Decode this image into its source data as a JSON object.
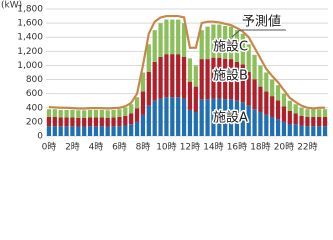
{
  "chart_data": {
    "type": "bar",
    "stacked": true,
    "unit": "(kW)",
    "categories": [
      "0時",
      null,
      null,
      null,
      "2時",
      null,
      null,
      null,
      "4時",
      null,
      null,
      null,
      "6時",
      null,
      null,
      null,
      "8時",
      null,
      null,
      null,
      "10時",
      null,
      null,
      null,
      "12時",
      null,
      null,
      null,
      "14時",
      null,
      null,
      null,
      "16時",
      null,
      null,
      null,
      "18時",
      null,
      null,
      null,
      "20時",
      null,
      null,
      null,
      "22時",
      null,
      null,
      null
    ],
    "series": [
      {
        "name": "施設A",
        "color": "#1f6fb2",
        "values": [
          140,
          140,
          137,
          137,
          137,
          135,
          135,
          137,
          137,
          137,
          135,
          137,
          140,
          148,
          166,
          200,
          300,
          430,
          500,
          530,
          550,
          550,
          550,
          530,
          370,
          340,
          520,
          520,
          530,
          530,
          520,
          520,
          500,
          480,
          430,
          380,
          340,
          300,
          270,
          240,
          200,
          170,
          166,
          148,
          140,
          140,
          140,
          140
        ]
      },
      {
        "name": "施設B",
        "color": "#b0202a",
        "values": [
          130,
          130,
          126,
          126,
          126,
          124,
          124,
          126,
          126,
          126,
          124,
          126,
          130,
          136,
          153,
          190,
          330,
          480,
          550,
          590,
          610,
          610,
          610,
          590,
          400,
          360,
          570,
          570,
          580,
          580,
          575,
          570,
          550,
          535,
          480,
          425,
          360,
          330,
          295,
          265,
          220,
          185,
          153,
          136,
          130,
          130,
          130,
          130
        ]
      },
      {
        "name": "施設C",
        "color": "#8bbf5a",
        "values": [
          110,
          110,
          107,
          107,
          107,
          106,
          106,
          107,
          107,
          107,
          106,
          107,
          110,
          116,
          131,
          160,
          270,
          390,
          450,
          480,
          490,
          490,
          490,
          480,
          330,
          300,
          410,
          460,
          470,
          470,
          465,
          460,
          450,
          435,
          390,
          345,
          300,
          270,
          235,
          215,
          180,
          145,
          131,
          116,
          110,
          110,
          110,
          110
        ]
      },
      {
        "name": "予測値",
        "type": "line",
        "color": "#c8874a",
        "values": [
          410,
          405,
          400,
          400,
          395,
          390,
          390,
          395,
          395,
          395,
          390,
          395,
          400,
          420,
          470,
          600,
          1000,
          1450,
          1620,
          1680,
          1700,
          1700,
          1700,
          1680,
          1250,
          1250,
          1600,
          1620,
          1620,
          1610,
          1590,
          1570,
          1530,
          1480,
          1400,
          1250,
          1100,
          950,
          850,
          760,
          650,
          540,
          480,
          430,
          400,
          390,
          400,
          400
        ]
      }
    ],
    "ylim": [
      0,
      1800
    ],
    "yticks": [
      0,
      {
        "value": 200,
        "label": "200"
      },
      {
        "value": 400,
        "label": "400"
      },
      {
        "value": 600,
        "label": "600"
      },
      {
        "value": 800,
        "label": "800"
      },
      {
        "value": 1000,
        "label": "1,000"
      },
      {
        "value": 1200,
        "label": "1,200"
      },
      {
        "value": 1400,
        "label": "1,400"
      },
      {
        "value": 1600,
        "label": "1,600"
      },
      {
        "value": 1800,
        "label": "1,800"
      }
    ],
    "grid": true
  }
}
